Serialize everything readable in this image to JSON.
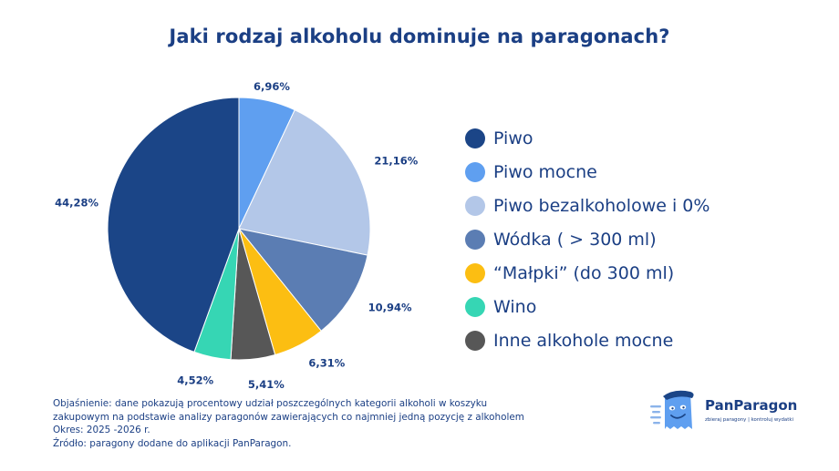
{
  "chart_data": {
    "type": "pie",
    "title": "Jaki rodzaj alkoholu dominuje na paragonach?",
    "legend_position": "right",
    "start_angle_deg": 0,
    "direction": "clockwise",
    "categories": [
      "Piwo",
      "Piwo mocne",
      "Piwo bezalkoholowe i 0%",
      "Wódka ( > 300 ml)",
      "“Małpki” (do 300 ml)",
      "Wino",
      "Inne alkohole mocne"
    ],
    "slices": [
      {
        "name": "Piwo mocne",
        "value": 6.96,
        "label": "6,96%",
        "color": "#5f9ff0"
      },
      {
        "name": "Piwo bezalkoholowe i 0%",
        "value": 21.16,
        "label": "21,16%",
        "color": "#b3c7e8"
      },
      {
        "name": "Wódka ( > 300 ml)",
        "value": 10.94,
        "label": "10,94%",
        "color": "#5b7db3"
      },
      {
        "name": "“Małpki” (do 300 ml)",
        "value": 6.31,
        "label": "6,31%",
        "color": "#fcbe12"
      },
      {
        "name": "Inne alkohole mocne",
        "value": 5.41,
        "label": "5,41%",
        "color": "#575757"
      },
      {
        "name": "Wino",
        "value": 4.52,
        "label": "4,52%",
        "color": "#36d6b4"
      },
      {
        "name": "Piwo",
        "value": 44.28,
        "label": "44,28%",
        "color": "#1b4587"
      }
    ]
  },
  "legend": [
    {
      "label": "Piwo",
      "color": "#1b4587"
    },
    {
      "label": "Piwo mocne",
      "color": "#5f9ff0"
    },
    {
      "label": "Piwo bezalkoholowe i 0%",
      "color": "#b3c7e8"
    },
    {
      "label": "Wódka ( > 300 ml)",
      "color": "#5b7db3"
    },
    {
      "label": "“Małpki” (do 300 ml)",
      "color": "#fcbe12"
    },
    {
      "label": "Wino",
      "color": "#36d6b4"
    },
    {
      "label": "Inne alkohole mocne",
      "color": "#575757"
    }
  ],
  "footnote": {
    "line1": "Objaśnienie: dane pokazują procentowy udział poszczególnych kategorii alkoholi w koszyku",
    "line2": "zakupowym na podstawie analizy paragonów zawierających co najmniej jedną pozycję z alkoholem",
    "line3": "Okres: 2025 -2026 r.",
    "line4": "Źródło: paragony dodane do aplikacji PanParagon."
  },
  "brand": {
    "name": "PanParagon",
    "tagline": "zbieraj paragony | kontroluj wydatki"
  },
  "colors": {
    "text": "#1b3f84",
    "background": "#ffffff"
  }
}
